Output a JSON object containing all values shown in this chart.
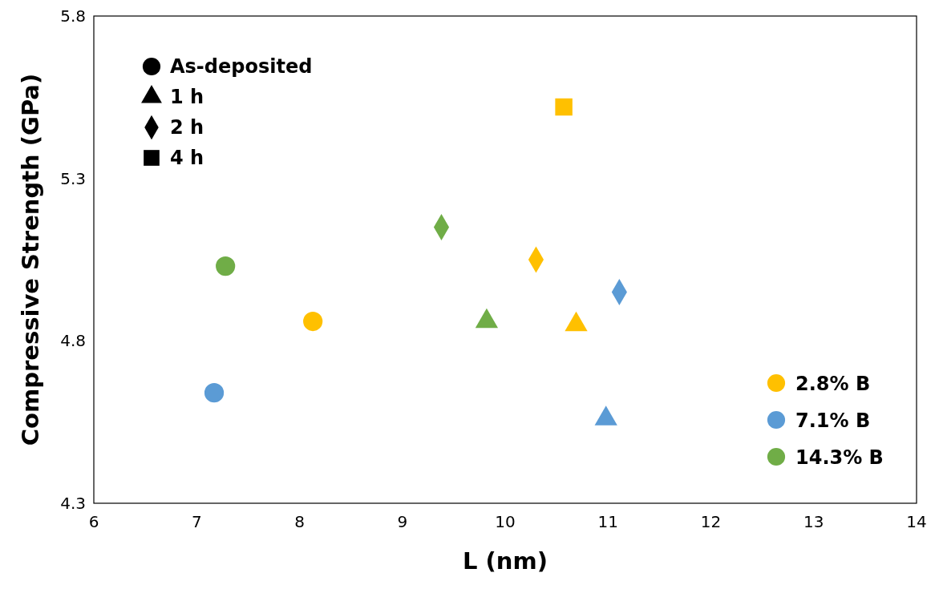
{
  "chart_data": {
    "type": "scatter",
    "xlabel": "L (nm)",
    "ylabel": "Compressive Strength (GPa)",
    "xlim": [
      6,
      14
    ],
    "xticks": [
      6,
      7,
      8,
      9,
      10,
      11,
      12,
      13,
      14
    ],
    "ylim": [
      4.3,
      5.8
    ],
    "yticks": [
      4.3,
      4.8,
      5.3,
      5.8
    ],
    "grid": false,
    "legend": "bottom right",
    "annotations": [
      "As-deposited",
      "1 h",
      "2 h",
      "4 h"
    ],
    "series": [
      {
        "name": "2.8% B",
        "marker": "circle",
        "color": "#ffc000",
        "x": [
          8.13
        ],
        "values": [
          4.86
        ]
      },
      {
        "name": "7.1% B",
        "marker": "circle",
        "color": "#5b9bd5",
        "x": [
          7.17
        ],
        "values": [
          4.64
        ]
      },
      {
        "name": "14.3% B",
        "marker": "circle",
        "color": "#70ad47",
        "x": [
          7.28
        ],
        "values": [
          5.03
        ]
      },
      {
        "marker": "triangle",
        "color": "#ffc000",
        "x": [
          10.69
        ],
        "values": [
          4.85
        ]
      },
      {
        "marker": "triangle",
        "color": "#5b9bd5",
        "x": [
          10.98
        ],
        "values": [
          4.56
        ]
      },
      {
        "marker": "triangle",
        "color": "#70ad47",
        "x": [
          9.82
        ],
        "values": [
          4.86
        ]
      },
      {
        "marker": "diamond",
        "color": "#ffc000",
        "x": [
          10.3
        ],
        "values": [
          5.05
        ]
      },
      {
        "marker": "diamond",
        "color": "#5b9bd5",
        "x": [
          11.11
        ],
        "values": [
          4.95
        ]
      },
      {
        "marker": "diamond",
        "color": "#70ad47",
        "x": [
          9.38
        ],
        "values": [
          5.15
        ]
      },
      {
        "marker": "square",
        "color": "#ffc000",
        "x": [
          10.57
        ],
        "values": [
          5.52
        ]
      }
    ]
  }
}
